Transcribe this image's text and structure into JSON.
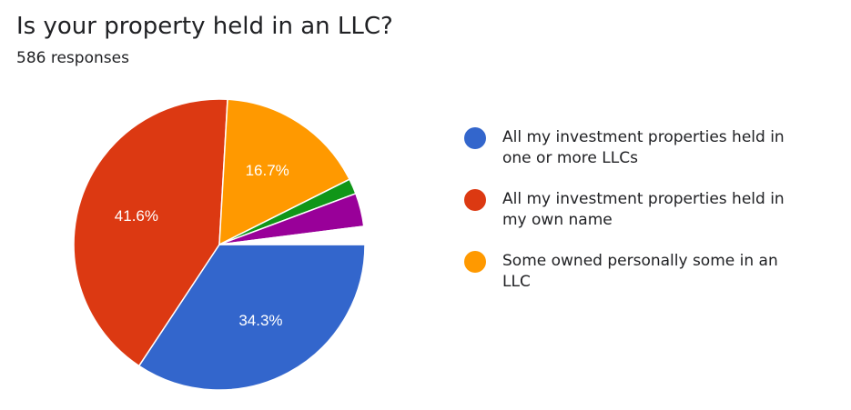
{
  "chart_data": {
    "type": "pie",
    "title": "Is your property held in an LLC?",
    "subtitle": "586 responses",
    "categories": [
      "All my investment properties held in one or more LLCs",
      "All my investment properties held in my own name",
      "Some owned personally some in an LLC",
      null,
      null,
      null
    ],
    "values": [
      34.3,
      41.6,
      16.7,
      1.7,
      3.7,
      2.0
    ],
    "value_labels": [
      "34.3%",
      "41.6%",
      "16.7%",
      null,
      null,
      null
    ],
    "colors": [
      "#3366cc",
      "#dc3912",
      "#ff9900",
      "#109618",
      "#990099",
      "#ffffff"
    ],
    "legend": "right"
  }
}
